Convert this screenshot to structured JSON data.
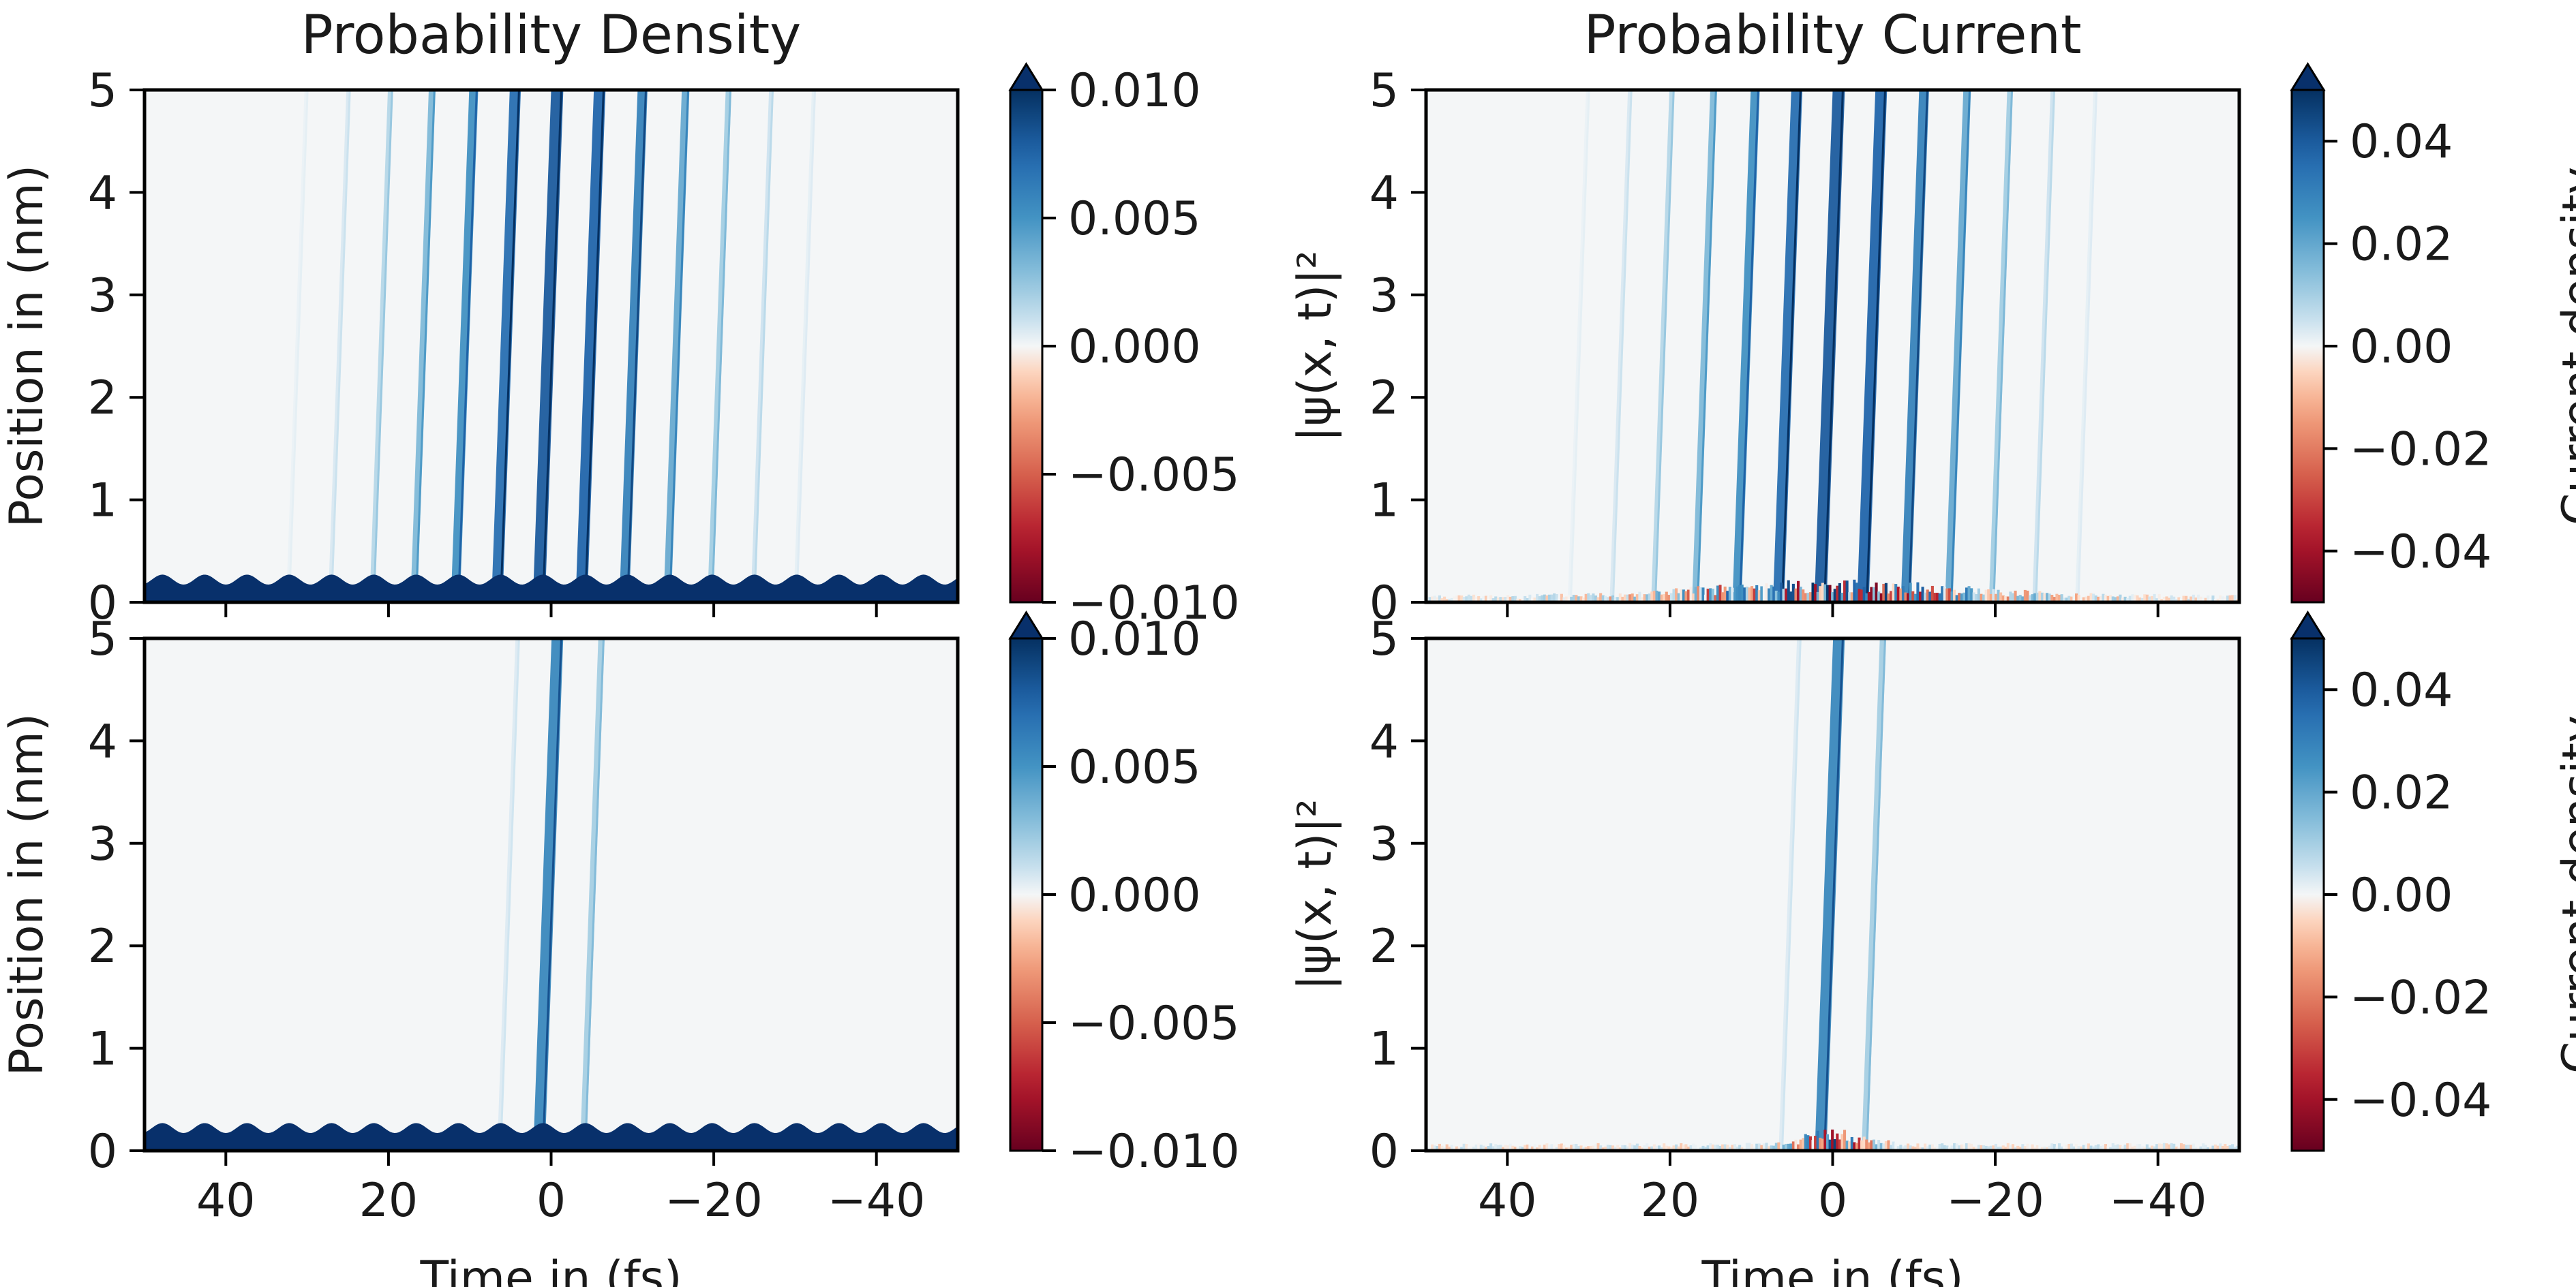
{
  "figure": {
    "col_titles": [
      "Probability Density",
      "Probability Current"
    ],
    "x_label": "Time in (fs)",
    "y_label": "Position in (nm)"
  },
  "colors": {
    "colormap": "RdBu",
    "background": "#f4f6f7",
    "deep_blue": "#08306b",
    "deep_red": "#67001f",
    "axis": "#000000"
  },
  "chart_data": [
    {
      "type": "heatmap",
      "panel": "top-left",
      "title": "Probability Density",
      "xlabel": "",
      "ylabel": "Position in (nm)",
      "xlim": [
        50,
        -50
      ],
      "ylim": [
        0,
        5
      ],
      "x_ticks": [
        40,
        20,
        0,
        -20,
        -40
      ],
      "x_tick_labels": [
        "",
        "",
        "",
        "",
        ""
      ],
      "y_ticks": [
        0,
        1,
        2,
        3,
        4,
        5
      ],
      "y_tick_labels": [
        "0",
        "1",
        "2",
        "3",
        "4",
        "5"
      ],
      "colorbar": {
        "label": "|ψ(x, t)|²",
        "vmin": -0.01,
        "vmax": 0.01,
        "extend": "max",
        "ticks": [
          -0.01,
          -0.005,
          0,
          0.005,
          0.01
        ],
        "tick_labels": [
          "−0.010",
          "−0.005",
          "0.000",
          "0.005",
          "0.010"
        ]
      },
      "features": {
        "kind": "density",
        "bound_state_height_nm": 0.27,
        "bound_state_ripple_period_fs": 5.2,
        "stripe_spacing_fs": 5.2,
        "stripe_envelope_halfwidth_fs": 17,
        "stripe_slope_fs_per_nm": 0.45,
        "stripe_peak_value": 0.008
      }
    },
    {
      "type": "heatmap",
      "panel": "top-right",
      "title": "Probability Current",
      "xlabel": "",
      "ylabel": "",
      "xlim": [
        50,
        -50
      ],
      "ylim": [
        0,
        5
      ],
      "x_ticks": [
        40,
        20,
        0,
        -20,
        -40
      ],
      "x_tick_labels": [
        "",
        "",
        "",
        "",
        ""
      ],
      "y_ticks": [
        0,
        1,
        2,
        3,
        4,
        5
      ],
      "y_tick_labels": [
        "0",
        "1",
        "2",
        "3",
        "4",
        "5"
      ],
      "colorbar": {
        "label": "Current density",
        "vmin": -0.05,
        "vmax": 0.05,
        "extend": "max",
        "ticks": [
          -0.04,
          -0.02,
          0,
          0.02,
          0.04
        ],
        "tick_labels": [
          "−0.04",
          "−0.02",
          "0.00",
          "0.02",
          "0.04"
        ]
      },
      "features": {
        "kind": "current",
        "stripe_spacing_fs": 5.2,
        "stripe_envelope_halfwidth_fs": 17,
        "stripe_slope_fs_per_nm": 0.45,
        "stripe_peak_value": 0.04,
        "bottom_noise_height_nm": 0.15
      }
    },
    {
      "type": "heatmap",
      "panel": "bottom-left",
      "title": "",
      "xlabel": "Time in (fs)",
      "ylabel": "Position in (nm)",
      "xlim": [
        50,
        -50
      ],
      "ylim": [
        0,
        5
      ],
      "x_ticks": [
        40,
        20,
        0,
        -20,
        -40
      ],
      "x_tick_labels": [
        "40",
        "20",
        "0",
        "−20",
        "−40"
      ],
      "y_ticks": [
        0,
        1,
        2,
        3,
        4,
        5
      ],
      "y_tick_labels": [
        "0",
        "1",
        "2",
        "3",
        "4",
        "5"
      ],
      "colorbar": {
        "label": "|ψ(x, t)|²",
        "vmin": -0.01,
        "vmax": 0.01,
        "extend": "max",
        "ticks": [
          -0.01,
          -0.005,
          0,
          0.005,
          0.01
        ],
        "tick_labels": [
          "−0.010",
          "−0.005",
          "0.000",
          "0.005",
          "0.010"
        ]
      },
      "features": {
        "kind": "density",
        "bound_state_height_nm": 0.27,
        "bound_state_ripple_period_fs": 5.2,
        "stripe_spacing_fs": 5.2,
        "stripe_envelope_halfwidth_fs": 4,
        "stripe_slope_fs_per_nm": 0.45,
        "stripe_peak_value": 0.006
      }
    },
    {
      "type": "heatmap",
      "panel": "bottom-right",
      "title": "",
      "xlabel": "Time in (fs)",
      "ylabel": "",
      "xlim": [
        50,
        -50
      ],
      "ylim": [
        0,
        5
      ],
      "x_ticks": [
        40,
        20,
        0,
        -20,
        -40
      ],
      "x_tick_labels": [
        "40",
        "20",
        "0",
        "−20",
        "−40"
      ],
      "y_ticks": [
        0,
        1,
        2,
        3,
        4,
        5
      ],
      "y_tick_labels": [
        "0",
        "1",
        "2",
        "3",
        "4",
        "5"
      ],
      "colorbar": {
        "label": "Current density",
        "vmin": -0.05,
        "vmax": 0.05,
        "extend": "max",
        "ticks": [
          -0.04,
          -0.02,
          0,
          0.02,
          0.04
        ],
        "tick_labels": [
          "−0.04",
          "−0.02",
          "0.00",
          "0.02",
          "0.04"
        ]
      },
      "features": {
        "kind": "current",
        "stripe_spacing_fs": 5.2,
        "stripe_envelope_halfwidth_fs": 4,
        "stripe_slope_fs_per_nm": 0.45,
        "stripe_peak_value": 0.03,
        "bottom_noise_height_nm": 0.15
      }
    }
  ]
}
